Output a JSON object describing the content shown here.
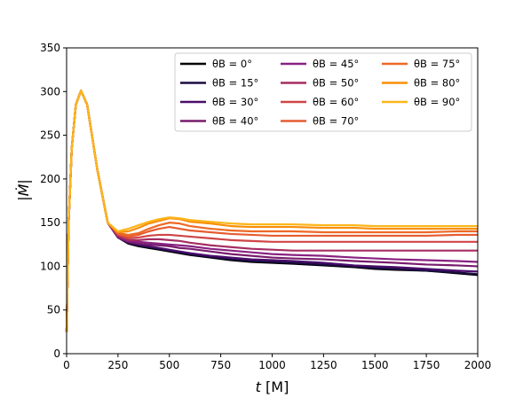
{
  "chart_data": {
    "type": "line",
    "title": "",
    "xlabel_var": "t",
    "xlabel_unit": " [M]",
    "ylabel": "|Ṁ|",
    "xlim": [
      0,
      2000
    ],
    "ylim": [
      0,
      350
    ],
    "xticks": [
      "0",
      "250",
      "500",
      "750",
      "1000",
      "1250",
      "1500",
      "1750",
      "2000"
    ],
    "yticks": [
      "0",
      "50",
      "100",
      "150",
      "200",
      "250",
      "300",
      "350"
    ],
    "grid": false,
    "legend_position": "top-right",
    "legend_columns": 3,
    "x": [
      0,
      10,
      25,
      45,
      70,
      100,
      150,
      200,
      250,
      300,
      350,
      400,
      450,
      500,
      550,
      600,
      700,
      800,
      900,
      1000,
      1100,
      1250,
      1400,
      1500,
      1600,
      1750,
      1900,
      2000
    ],
    "series": [
      {
        "name": "θB = 0°",
        "color": "#000004",
        "values": [
          25,
          150,
          235,
          285,
          301,
          285,
          210,
          150,
          133,
          126,
          123,
          121,
          119,
          117,
          115,
          113,
          110,
          107,
          105,
          104,
          103,
          101,
          99,
          97,
          96,
          95,
          92,
          90
        ]
      },
      {
        "name": "θB = 15°",
        "color": "#1b0c41",
        "values": [
          25,
          150,
          235,
          285,
          301,
          285,
          210,
          150,
          133,
          127,
          124,
          122,
          120,
          118,
          116,
          114,
          111,
          108,
          106,
          105,
          104,
          102,
          100,
          98,
          97,
          95,
          93,
          91
        ]
      },
      {
        "name": "θB = 30°",
        "color": "#4a0c6b",
        "values": [
          25,
          150,
          235,
          285,
          301,
          285,
          210,
          150,
          133,
          127,
          125,
          123,
          121,
          119,
          117,
          115,
          112,
          110,
          108,
          107,
          106,
          104,
          101,
          100,
          99,
          97,
          95,
          94
        ]
      },
      {
        "name": "θB = 40°",
        "color": "#781c6d",
        "values": [
          25,
          150,
          235,
          285,
          301,
          285,
          210,
          150,
          133,
          128,
          126,
          125,
          124,
          123,
          121,
          120,
          117,
          114,
          112,
          110,
          109,
          108,
          106,
          105,
          104,
          102,
          101,
          100
        ]
      },
      {
        "name": "θB = 45°",
        "color": "#882181",
        "values": [
          25,
          150,
          235,
          285,
          301,
          285,
          210,
          150,
          134,
          129,
          128,
          127,
          126,
          125,
          124,
          123,
          120,
          118,
          116,
          114,
          113,
          112,
          110,
          109,
          108,
          107,
          106,
          105
        ]
      },
      {
        "name": "θB = 50°",
        "color": "#a52c60",
        "values": [
          25,
          150,
          235,
          285,
          301,
          285,
          210,
          150,
          135,
          130,
          130,
          131,
          131,
          130,
          129,
          127,
          124,
          122,
          120,
          119,
          118,
          118,
          118,
          118,
          118,
          118,
          118,
          118
        ]
      },
      {
        "name": "θB = 60°",
        "color": "#cf4446",
        "values": [
          25,
          150,
          235,
          285,
          301,
          285,
          210,
          150,
          136,
          132,
          133,
          135,
          136,
          136,
          135,
          134,
          132,
          130,
          129,
          128,
          128,
          128,
          128,
          128,
          128,
          128,
          128,
          128
        ]
      },
      {
        "name": "θB = 70°",
        "color": "#e55c30",
        "values": [
          25,
          150,
          235,
          285,
          301,
          285,
          210,
          150,
          137,
          134,
          136,
          140,
          143,
          145,
          143,
          141,
          139,
          137,
          136,
          135,
          135,
          135,
          135,
          135,
          135,
          135,
          136,
          136
        ]
      },
      {
        "name": "θB = 75°",
        "color": "#ed6925",
        "values": [
          25,
          150,
          235,
          285,
          301,
          285,
          210,
          150,
          138,
          136,
          138,
          143,
          147,
          150,
          149,
          146,
          143,
          141,
          140,
          140,
          140,
          139,
          139,
          139,
          139,
          139,
          140,
          140
        ]
      },
      {
        "name": "θB = 80°",
        "color": "#f98e09",
        "values": [
          25,
          150,
          235,
          285,
          301,
          285,
          210,
          150,
          139,
          140,
          144,
          149,
          152,
          155,
          154,
          151,
          149,
          146,
          145,
          145,
          145,
          144,
          144,
          143,
          143,
          143,
          143,
          143
        ]
      },
      {
        "name": "θB = 90°",
        "color": "#fbb61a",
        "values": [
          25,
          150,
          235,
          285,
          301,
          285,
          210,
          150,
          140,
          143,
          147,
          151,
          154,
          156,
          155,
          153,
          151,
          149,
          148,
          148,
          148,
          147,
          147,
          146,
          146,
          146,
          146,
          146
        ]
      }
    ]
  }
}
